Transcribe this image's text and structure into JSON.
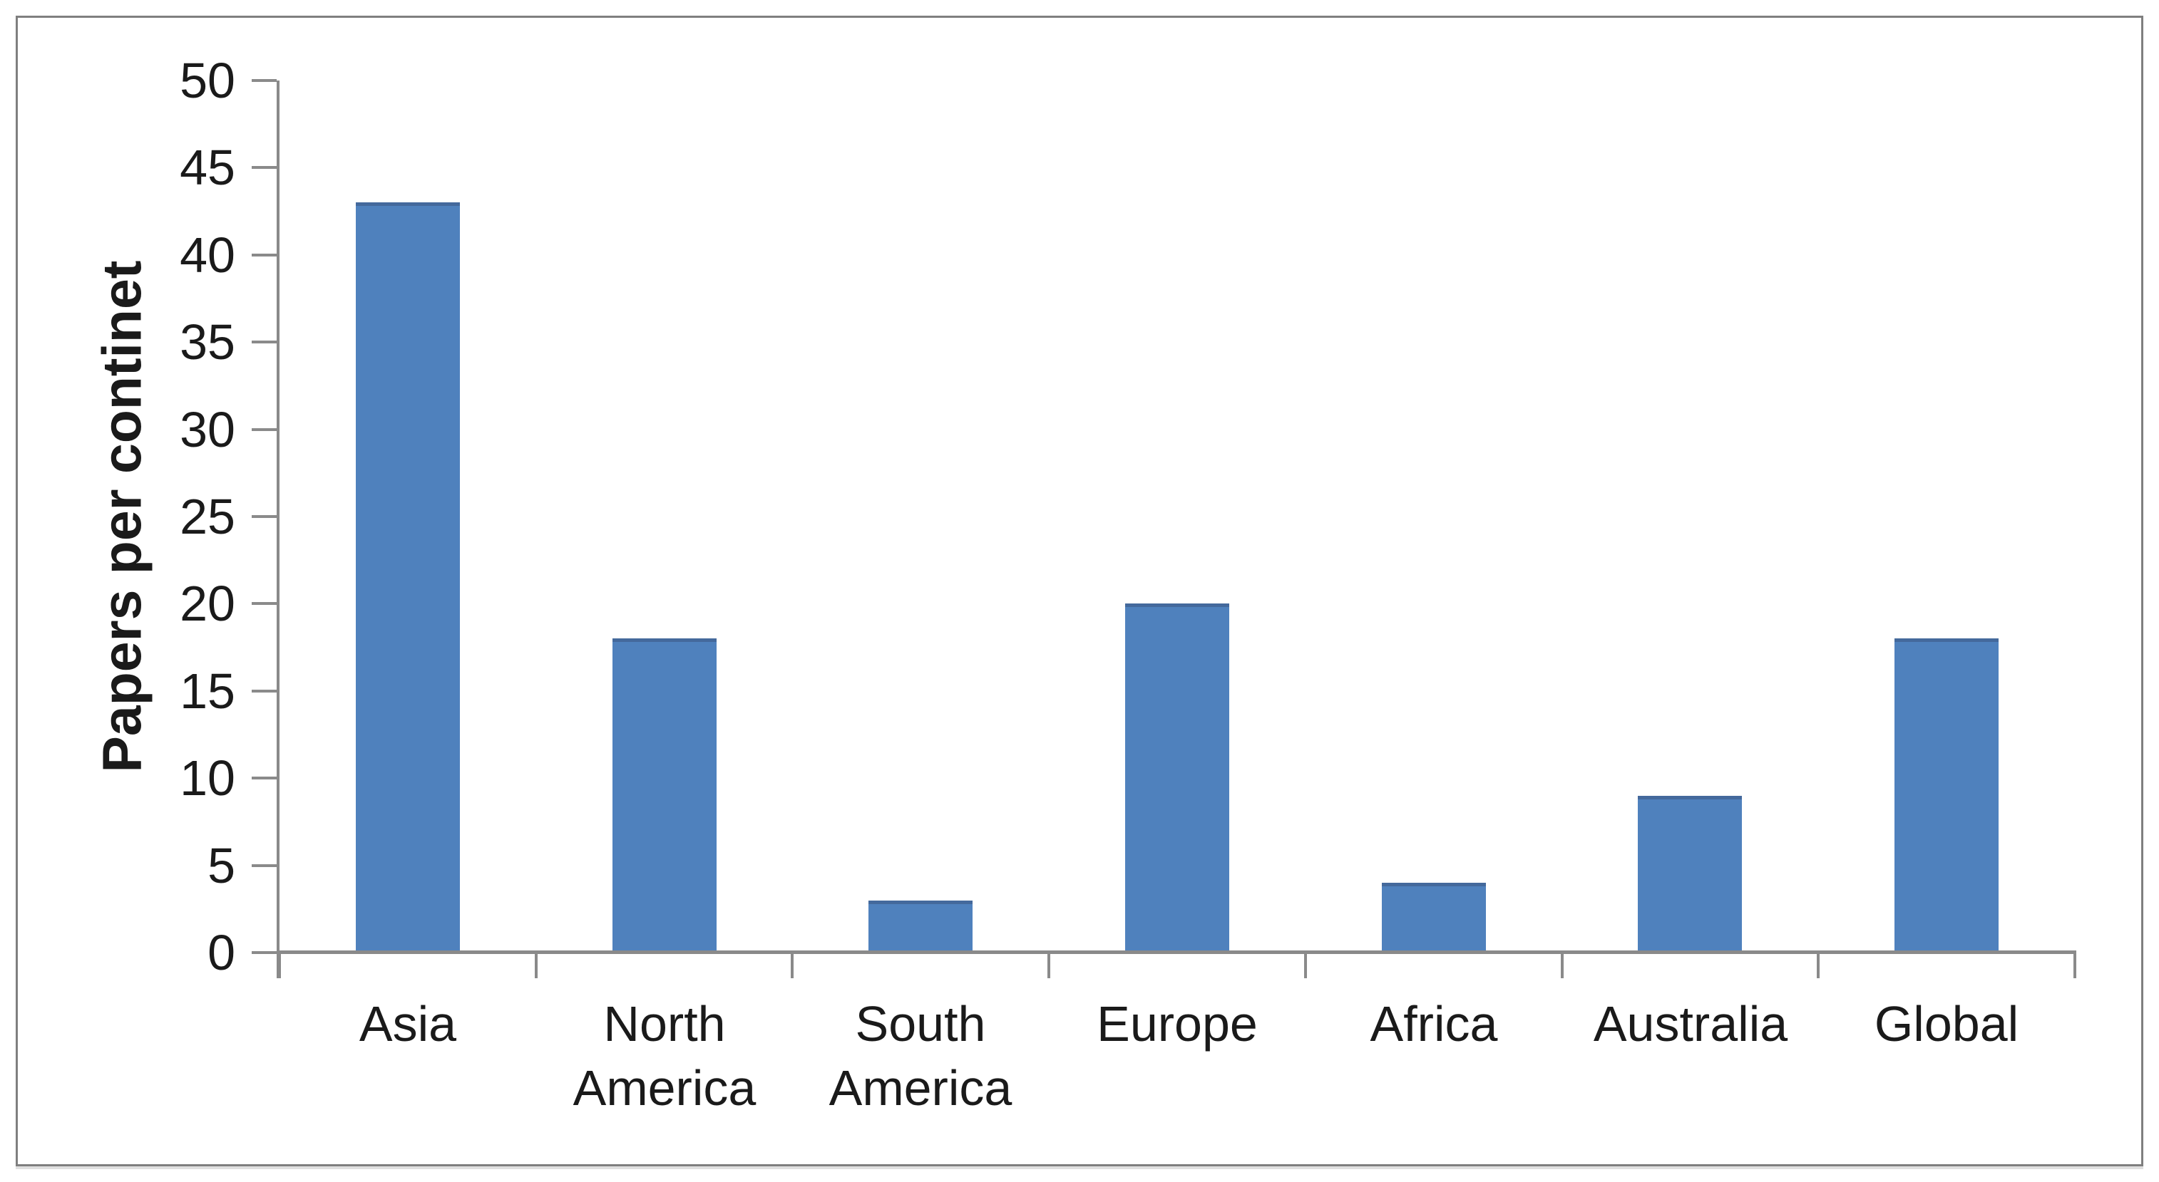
{
  "frame": {
    "border_color": "#7f7f7f",
    "background": "#ffffff"
  },
  "chart_data": {
    "type": "bar",
    "categories": [
      "Asia",
      "North America",
      "South America",
      "Europe",
      "Africa",
      "Australia",
      "Global"
    ],
    "values": [
      43,
      18,
      3,
      20,
      4,
      9,
      18
    ],
    "ylabel": "Papers per continet",
    "ylim": [
      0,
      50
    ],
    "yticks": [
      0,
      5,
      10,
      15,
      20,
      25,
      30,
      35,
      40,
      45,
      50
    ],
    "ytick_labels": [
      "0",
      "5",
      "10",
      "15",
      "20",
      "25",
      "30",
      "35",
      "40",
      "45",
      "50"
    ],
    "grid": false,
    "legend": false,
    "bar_color": "#4f81bd",
    "bar_top_edge_color": "#44699c",
    "axis_color": "#8a8a8a",
    "text_color": "#1a1a1a"
  }
}
